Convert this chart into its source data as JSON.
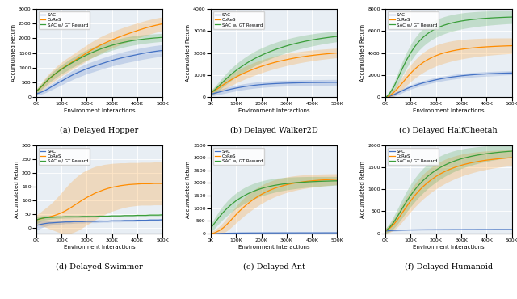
{
  "subplots": [
    {
      "title": "(a) Delayed Hopper",
      "ylabel": "Accumulated Return",
      "xlabel": "Environment Interactions",
      "ylim": [
        0,
        3000
      ],
      "yticks": [
        0,
        500,
        1000,
        1500,
        2000,
        2500,
        3000
      ],
      "xlim": [
        0,
        500000
      ],
      "xticks": [
        0,
        100000,
        200000,
        300000,
        400000,
        500000
      ],
      "sac_mean": [
        100,
        150,
        210,
        290,
        380,
        460,
        540,
        620,
        700,
        775,
        840,
        900,
        960,
        1010,
        1060,
        1110,
        1155,
        1200,
        1245,
        1285,
        1320,
        1355,
        1385,
        1415,
        1445,
        1475,
        1500,
        1525,
        1548,
        1568,
        1585
      ],
      "sac_std": [
        50,
        65,
        80,
        95,
        110,
        120,
        130,
        140,
        150,
        158,
        165,
        170,
        175,
        178,
        182,
        185,
        188,
        190,
        192,
        194,
        196,
        197,
        198,
        199,
        200,
        200,
        200,
        200,
        199,
        198,
        197
      ],
      "cores_mean": [
        180,
        310,
        460,
        600,
        720,
        840,
        950,
        1050,
        1140,
        1230,
        1320,
        1410,
        1500,
        1590,
        1670,
        1750,
        1820,
        1885,
        1948,
        2005,
        2060,
        2115,
        2165,
        2215,
        2265,
        2310,
        2355,
        2395,
        2432,
        2465,
        2495
      ],
      "cores_std": [
        90,
        130,
        165,
        190,
        210,
        225,
        235,
        242,
        248,
        255,
        262,
        268,
        273,
        277,
        280,
        282,
        282,
        282,
        280,
        278,
        275,
        272,
        268,
        264,
        260,
        256,
        252,
        248,
        244,
        240,
        236
      ],
      "gt_mean": [
        180,
        320,
        470,
        610,
        730,
        840,
        940,
        1030,
        1120,
        1205,
        1285,
        1362,
        1432,
        1498,
        1560,
        1618,
        1670,
        1718,
        1762,
        1802,
        1838,
        1870,
        1898,
        1923,
        1945,
        1964,
        1981,
        1996,
        2009,
        2020,
        2030
      ],
      "gt_std": [
        70,
        95,
        115,
        130,
        140,
        148,
        155,
        160,
        165,
        168,
        171,
        173,
        174,
        175,
        175,
        174,
        173,
        172,
        170,
        168,
        166,
        163,
        160,
        157,
        154,
        151,
        148,
        145,
        142,
        139,
        136
      ]
    },
    {
      "title": "(b) Delayed Walker2D",
      "ylabel": "Accumulated Return",
      "xlabel": "Environment Interactions",
      "ylim": [
        0,
        4000
      ],
      "yticks": [
        0,
        1000,
        2000,
        3000,
        4000
      ],
      "xlim": [
        0,
        500000
      ],
      "xticks": [
        0,
        100000,
        200000,
        300000,
        400000,
        500000
      ],
      "sac_mean": [
        120,
        170,
        220,
        270,
        318,
        362,
        402,
        438,
        470,
        498,
        523,
        545,
        563,
        579,
        592,
        603,
        612,
        620,
        627,
        633,
        638,
        643,
        647,
        650,
        653,
        655,
        657,
        659,
        661,
        662,
        663
      ],
      "sac_std": [
        90,
        100,
        110,
        118,
        124,
        128,
        131,
        133,
        134,
        135,
        135,
        135,
        135,
        135,
        134,
        134,
        133,
        133,
        132,
        132,
        131,
        131,
        130,
        130,
        130,
        130,
        130,
        130,
        130,
        130,
        130
      ],
      "cores_mean": [
        180,
        290,
        420,
        555,
        680,
        798,
        905,
        1002,
        1092,
        1174,
        1251,
        1322,
        1388,
        1450,
        1507,
        1560,
        1609,
        1654,
        1696,
        1735,
        1771,
        1804,
        1834,
        1861,
        1886,
        1909,
        1930,
        1949,
        1967,
        1983,
        1998
      ],
      "cores_std": [
        110,
        150,
        188,
        218,
        242,
        260,
        273,
        282,
        288,
        292,
        294,
        295,
        294,
        292,
        290,
        286,
        282,
        278,
        273,
        268,
        263,
        258,
        253,
        248,
        243,
        238,
        233,
        229,
        225,
        221,
        217
      ],
      "gt_mean": [
        180,
        330,
        510,
        700,
        880,
        1048,
        1200,
        1340,
        1470,
        1590,
        1700,
        1800,
        1892,
        1978,
        2058,
        2132,
        2200,
        2263,
        2322,
        2376,
        2426,
        2472,
        2515,
        2554,
        2590,
        2623,
        2654,
        2682,
        2708,
        2732,
        2754
      ],
      "gt_std": [
        110,
        155,
        196,
        230,
        258,
        280,
        297,
        310,
        319,
        325,
        329,
        331,
        332,
        331,
        329,
        326,
        322,
        317,
        312,
        306,
        300,
        294,
        288,
        282,
        276,
        270,
        264,
        258,
        252,
        247,
        242
      ]
    },
    {
      "title": "(c) Delayed HalfCheetah",
      "ylabel": "Accumulated Return",
      "xlabel": "Environment Interactions",
      "ylim": [
        0,
        8000
      ],
      "yticks": [
        0,
        2000,
        4000,
        6000,
        8000
      ],
      "xlim": [
        0,
        500000
      ],
      "xticks": [
        0,
        100000,
        200000,
        300000,
        400000,
        500000
      ],
      "sac_mean": [
        -100,
        50,
        200,
        380,
        560,
        740,
        900,
        1040,
        1165,
        1278,
        1380,
        1473,
        1557,
        1633,
        1702,
        1764,
        1820,
        1870,
        1915,
        1955,
        1990,
        2021,
        2048,
        2072,
        2093,
        2112,
        2128,
        2143,
        2156,
        2167,
        2177
      ],
      "sac_std": [
        150,
        160,
        170,
        180,
        188,
        194,
        199,
        203,
        206,
        208,
        210,
        211,
        212,
        212,
        212,
        211,
        211,
        210,
        209,
        208,
        207,
        206,
        205,
        204,
        203,
        202,
        201,
        200,
        199,
        198,
        197
      ],
      "cores_mean": [
        -100,
        100,
        400,
        800,
        1250,
        1720,
        2150,
        2530,
        2860,
        3140,
        3380,
        3580,
        3750,
        3892,
        4010,
        4110,
        4195,
        4268,
        4330,
        4383,
        4428,
        4467,
        4501,
        4530,
        4556,
        4578,
        4598,
        4615,
        4630,
        4644,
        4656
      ],
      "cores_std": [
        150,
        220,
        320,
        440,
        560,
        670,
        760,
        828,
        878,
        912,
        934,
        946,
        950,
        947,
        940,
        929,
        916,
        901,
        885,
        869,
        852,
        836,
        820,
        804,
        789,
        774,
        760,
        746,
        733,
        720,
        708
      ],
      "gt_mean": [
        -100,
        300,
        900,
        1700,
        2550,
        3330,
        4010,
        4580,
        5050,
        5435,
        5750,
        6008,
        6218,
        6390,
        6532,
        6650,
        6749,
        6832,
        6903,
        6963,
        7014,
        7058,
        7096,
        7129,
        7157,
        7182,
        7204,
        7223,
        7240,
        7255,
        7268
      ],
      "gt_std": [
        150,
        250,
        390,
        530,
        640,
        710,
        755,
        782,
        797,
        804,
        805,
        802,
        796,
        788,
        778,
        767,
        755,
        742,
        729,
        716,
        703,
        690,
        677,
        665,
        653,
        641,
        630,
        619,
        608,
        598,
        588
      ]
    },
    {
      "title": "(d) Delayed Swimmer",
      "ylabel": "Accumulated Return",
      "xlabel": "Environment Interactions",
      "ylim": [
        -20,
        300
      ],
      "yticks": [
        0,
        50,
        100,
        150,
        200,
        250,
        300
      ],
      "xlim": [
        0,
        500000
      ],
      "xticks": [
        0,
        100000,
        200000,
        300000,
        400000,
        500000
      ],
      "sac_mean": [
        8,
        12,
        15,
        17,
        18,
        19,
        20,
        21,
        21,
        22,
        22,
        22,
        23,
        23,
        23,
        24,
        24,
        24,
        25,
        25,
        25,
        26,
        26,
        26,
        27,
        27,
        27,
        28,
        28,
        28,
        29
      ],
      "sac_std": [
        18,
        14,
        11,
        9,
        8,
        7,
        7,
        6,
        6,
        6,
        5,
        5,
        5,
        5,
        5,
        5,
        4,
        4,
        4,
        4,
        4,
        4,
        4,
        4,
        4,
        3,
        3,
        3,
        3,
        3,
        3
      ],
      "cores_mean": [
        28,
        32,
        36,
        39,
        43,
        48,
        54,
        62,
        71,
        81,
        91,
        101,
        110,
        118,
        126,
        132,
        138,
        143,
        147,
        150,
        153,
        155,
        157,
        158,
        159,
        160,
        160,
        160,
        161,
        161,
        161
      ],
      "cores_std": [
        18,
        25,
        33,
        42,
        52,
        63,
        74,
        84,
        92,
        97,
        100,
        101,
        100,
        99,
        97,
        94,
        92,
        89,
        87,
        85,
        83,
        81,
        80,
        79,
        78,
        78,
        78,
        78,
        78,
        78,
        78
      ],
      "gt_mean": [
        28,
        33,
        36,
        37,
        38,
        39,
        39,
        40,
        40,
        40,
        40,
        41,
        41,
        41,
        41,
        42,
        42,
        42,
        43,
        43,
        43,
        44,
        44,
        44,
        45,
        45,
        45,
        46,
        46,
        46,
        47
      ],
      "gt_std": [
        14,
        10,
        8,
        7,
        6,
        6,
        5,
        5,
        5,
        4,
        4,
        4,
        4,
        3,
        3,
        3,
        3,
        3,
        3,
        3,
        3,
        3,
        3,
        3,
        3,
        3,
        3,
        3,
        3,
        3,
        3
      ]
    },
    {
      "title": "(e) Delayed Ant",
      "ylabel": "Accumulated Return",
      "xlabel": "Environment Interactions",
      "ylim": [
        0,
        3500
      ],
      "yticks": [
        0,
        500,
        1000,
        1500,
        2000,
        2500,
        3000,
        3500
      ],
      "xlim": [
        0,
        500000
      ],
      "xticks": [
        0,
        100000,
        200000,
        300000,
        400000,
        500000
      ],
      "sac_mean": [
        -30,
        -20,
        -10,
        -5,
        0,
        3,
        6,
        8,
        9,
        10,
        11,
        11,
        12,
        12,
        13,
        13,
        13,
        14,
        14,
        14,
        14,
        15,
        15,
        15,
        15,
        15,
        15,
        16,
        16,
        16,
        16
      ],
      "sac_std": [
        40,
        38,
        36,
        34,
        32,
        30,
        28,
        26,
        24,
        22,
        21,
        20,
        19,
        18,
        17,
        16,
        16,
        15,
        15,
        14,
        14,
        14,
        13,
        13,
        13,
        12,
        12,
        12,
        12,
        11,
        11
      ],
      "cores_mean": [
        -30,
        20,
        100,
        220,
        380,
        560,
        740,
        910,
        1065,
        1205,
        1330,
        1442,
        1543,
        1632,
        1710,
        1778,
        1836,
        1886,
        1929,
        1966,
        1998,
        2025,
        2048,
        2068,
        2085,
        2100,
        2113,
        2124,
        2134,
        2143,
        2151
      ],
      "cores_std": [
        80,
        120,
        170,
        220,
        265,
        302,
        330,
        350,
        363,
        370,
        372,
        370,
        365,
        358,
        350,
        340,
        330,
        320,
        310,
        300,
        291,
        282,
        273,
        265,
        257,
        249,
        242,
        235,
        229,
        223,
        217
      ],
      "gt_mean": [
        200,
        420,
        640,
        840,
        1010,
        1160,
        1290,
        1402,
        1500,
        1586,
        1660,
        1724,
        1779,
        1826,
        1866,
        1900,
        1929,
        1954,
        1975,
        1993,
        2008,
        2021,
        2032,
        2042,
        2051,
        2058,
        2065,
        2071,
        2076,
        2081,
        2085
      ],
      "gt_std": [
        160,
        210,
        248,
        275,
        294,
        306,
        313,
        317,
        318,
        316,
        312,
        307,
        300,
        293,
        285,
        276,
        268,
        259,
        251,
        243,
        235,
        227,
        220,
        213,
        206,
        200,
        194,
        188,
        183,
        178,
        173
      ]
    },
    {
      "title": "(f) Delayed Humanoid",
      "ylabel": "Accumulated Return",
      "xlabel": "Environment Interactions",
      "ylim": [
        0,
        2000
      ],
      "yticks": [
        0,
        500,
        1000,
        1500,
        2000
      ],
      "xlim": [
        0,
        500000
      ],
      "xticks": [
        0,
        100000,
        200000,
        300000,
        400000,
        500000
      ],
      "sac_mean": [
        50,
        58,
        64,
        68,
        71,
        73,
        75,
        76,
        77,
        78,
        79,
        79,
        80,
        80,
        81,
        81,
        82,
        82,
        82,
        83,
        83,
        83,
        84,
        84,
        84,
        84,
        85,
        85,
        85,
        85,
        85
      ],
      "sac_std": [
        28,
        23,
        19,
        16,
        14,
        13,
        12,
        11,
        10,
        10,
        9,
        9,
        9,
        8,
        8,
        8,
        8,
        7,
        7,
        7,
        7,
        7,
        7,
        7,
        6,
        6,
        6,
        6,
        6,
        6,
        6
      ],
      "cores_mean": [
        50,
        110,
        200,
        320,
        460,
        600,
        735,
        858,
        967,
        1064,
        1149,
        1224,
        1290,
        1348,
        1398,
        1442,
        1481,
        1515,
        1545,
        1571,
        1594,
        1614,
        1632,
        1648,
        1662,
        1674,
        1685,
        1695,
        1704,
        1712,
        1719
      ],
      "cores_std": [
        55,
        92,
        132,
        168,
        200,
        226,
        247,
        263,
        274,
        281,
        285,
        286,
        284,
        281,
        276,
        270,
        264,
        257,
        250,
        243,
        236,
        229,
        222,
        216,
        210,
        204,
        198,
        193,
        188,
        183,
        178
      ],
      "gt_mean": [
        50,
        130,
        250,
        400,
        560,
        716,
        860,
        988,
        1102,
        1202,
        1290,
        1367,
        1434,
        1493,
        1544,
        1589,
        1628,
        1662,
        1692,
        1718,
        1741,
        1761,
        1779,
        1795,
        1809,
        1821,
        1832,
        1842,
        1851,
        1859,
        1866
      ],
      "gt_std": [
        55,
        94,
        138,
        177,
        210,
        236,
        255,
        268,
        276,
        280,
        280,
        277,
        272,
        265,
        257,
        249,
        240,
        231,
        222,
        213,
        205,
        197,
        189,
        182,
        175,
        168,
        162,
        156,
        150,
        145,
        140
      ]
    }
  ],
  "colors": {
    "sac": "#4472C4",
    "cores": "#FF8C00",
    "gt": "#3A9E3A"
  },
  "alpha_fill": 0.22,
  "legend_labels": [
    "SAC",
    "CoReS",
    "SAC w/ GT Reward"
  ],
  "bg_color": "#E8EEF4"
}
